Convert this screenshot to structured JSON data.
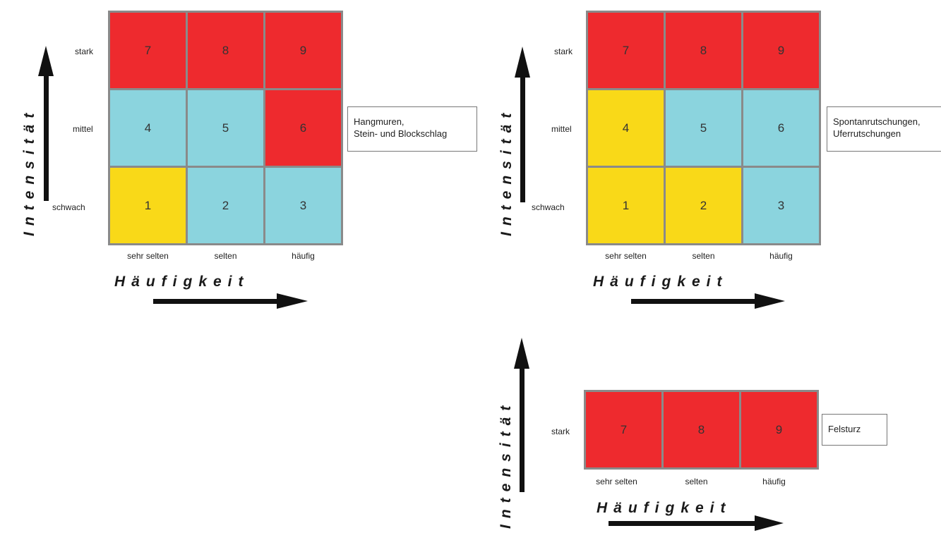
{
  "colors": {
    "red": "#ee2a2e",
    "blue": "#8bd4de",
    "yellow": "#f9d918",
    "grid": "#8a8a8a",
    "arrow": "#111111"
  },
  "panels": [
    {
      "id": "hangmuren",
      "y_axis_title": "Intensität",
      "x_axis_title": "Häufigkeit",
      "row_labels": [
        "stark",
        "mittel",
        "schwach"
      ],
      "col_labels": [
        "sehr selten",
        "selten",
        "häufig"
      ],
      "rows": [
        [
          {
            "label": "7",
            "class": "red"
          },
          {
            "label": "8",
            "class": "red"
          },
          {
            "label": "9",
            "class": "red"
          }
        ],
        [
          {
            "label": "4",
            "class": "blue"
          },
          {
            "label": "5",
            "class": "blue"
          },
          {
            "label": "6",
            "class": "red"
          }
        ],
        [
          {
            "label": "1",
            "class": "yellow"
          },
          {
            "label": "2",
            "class": "blue"
          },
          {
            "label": "3",
            "class": "blue"
          }
        ]
      ],
      "legend_lines": [
        "Hangmuren,",
        "Stein- und Blockschlag"
      ]
    },
    {
      "id": "spontanrutschungen",
      "y_axis_title": "Intensität",
      "x_axis_title": "Häufigkeit",
      "row_labels": [
        "stark",
        "mittel",
        "schwach"
      ],
      "col_labels": [
        "sehr selten",
        "selten",
        "häufig"
      ],
      "rows": [
        [
          {
            "label": "7",
            "class": "red"
          },
          {
            "label": "8",
            "class": "red"
          },
          {
            "label": "9",
            "class": "red"
          }
        ],
        [
          {
            "label": "4",
            "class": "yellow"
          },
          {
            "label": "5",
            "class": "blue"
          },
          {
            "label": "6",
            "class": "blue"
          }
        ],
        [
          {
            "label": "1",
            "class": "yellow"
          },
          {
            "label": "2",
            "class": "yellow"
          },
          {
            "label": "3",
            "class": "blue"
          }
        ]
      ],
      "legend_lines": [
        "Spontanrutschungen,",
        "Uferrutschungen"
      ]
    },
    {
      "id": "felssturz",
      "y_axis_title": "Intensität",
      "x_axis_title": "Häufigkeit",
      "row_labels": [
        "stark"
      ],
      "col_labels": [
        "sehr selten",
        "selten",
        "häufig"
      ],
      "rows": [
        [
          {
            "label": "7",
            "class": "red"
          },
          {
            "label": "8",
            "class": "red"
          },
          {
            "label": "9",
            "class": "red"
          }
        ]
      ],
      "legend_lines": [
        "Felsturz"
      ]
    }
  ]
}
